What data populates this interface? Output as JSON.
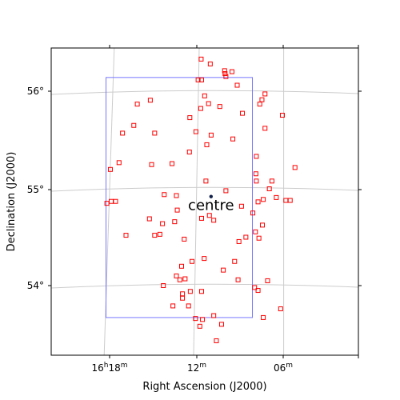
{
  "chart_data": {
    "type": "scatter",
    "title": "",
    "xlabel": "Right Ascension (J2000)",
    "ylabel": "Declination (J2000)",
    "projection": "sky (celestial coordinates, curved graticule)",
    "grid": true,
    "x_tick_labels": [
      {
        "h": "16",
        "m": "18",
        "label": "16h18m"
      },
      {
        "m": "12",
        "label": "12m"
      },
      {
        "m": "06",
        "label": "06m"
      }
    ],
    "y_tick_labels": [
      "56°",
      "55°",
      "54°"
    ],
    "annotation": {
      "text": "centre",
      "ra_h": 16.1836,
      "dec": 54.92
    },
    "field_box": {
      "ra_h_min": 16.136,
      "ra_h_max": 16.3045,
      "dec_min": 53.67,
      "dec_max": 56.15,
      "color": "#7777ff"
    },
    "point_color": "#ff0000",
    "points_ra_h_dec": [
      [
        16.195,
        56.34
      ],
      [
        16.1845,
        56.29
      ],
      [
        16.168,
        56.22
      ],
      [
        16.1595,
        56.21
      ],
      [
        16.1675,
        56.19
      ],
      [
        16.1665,
        56.16
      ],
      [
        16.1985,
        56.125
      ],
      [
        16.1945,
        56.125
      ],
      [
        16.1535,
        56.07
      ],
      [
        16.191,
        55.96
      ],
      [
        16.1215,
        55.98
      ],
      [
        16.125,
        55.92
      ],
      [
        16.1865,
        55.88
      ],
      [
        16.1275,
        55.875
      ],
      [
        16.2535,
        55.915
      ],
      [
        16.2685,
        55.875
      ],
      [
        16.1735,
        55.85
      ],
      [
        16.1955,
        55.83
      ],
      [
        16.2725,
        55.655
      ],
      [
        16.2485,
        55.575
      ],
      [
        16.201,
        55.59
      ],
      [
        16.1475,
        55.78
      ],
      [
        16.1015,
        55.76
      ],
      [
        16.208,
        55.735
      ],
      [
        16.2855,
        55.575
      ],
      [
        16.1835,
        55.555
      ],
      [
        16.1585,
        55.515
      ],
      [
        16.1885,
        55.455
      ],
      [
        16.2085,
        55.38
      ],
      [
        16.2285,
        55.26
      ],
      [
        16.2895,
        55.27
      ],
      [
        16.1315,
        55.335
      ],
      [
        16.1215,
        55.625
      ],
      [
        16.252,
        55.25
      ],
      [
        16.2995,
        55.2
      ],
      [
        16.087,
        55.22
      ],
      [
        16.132,
        55.155
      ],
      [
        16.1315,
        55.08
      ],
      [
        16.1895,
        55.08
      ],
      [
        16.2235,
        54.93
      ],
      [
        16.1855,
        54.725
      ],
      [
        16.1805,
        54.675
      ],
      [
        16.1945,
        54.695
      ],
      [
        16.1485,
        54.82
      ],
      [
        16.1665,
        54.98
      ],
      [
        16.1135,
        55.08
      ],
      [
        16.1165,
        55.0
      ],
      [
        16.1295,
        54.865
      ],
      [
        16.1355,
        54.75
      ],
      [
        16.1245,
        54.625
      ],
      [
        16.1325,
        54.555
      ],
      [
        16.1285,
        54.49
      ],
      [
        16.1515,
        54.455
      ],
      [
        16.1435,
        54.5
      ],
      [
        16.1235,
        54.89
      ],
      [
        16.1085,
        54.91
      ],
      [
        16.0975,
        54.88
      ],
      [
        16.0925,
        54.88
      ],
      [
        16.2985,
        54.87
      ],
      [
        16.3035,
        54.85
      ],
      [
        16.2935,
        54.87
      ],
      [
        16.2375,
        54.94
      ],
      [
        16.1915,
        54.28
      ],
      [
        16.2055,
        54.25
      ],
      [
        16.1565,
        54.25
      ],
      [
        16.1695,
        54.16
      ],
      [
        16.2175,
        54.2
      ],
      [
        16.2145,
        54.48
      ],
      [
        16.2225,
        54.78
      ],
      [
        16.2255,
        54.66
      ],
      [
        16.2395,
        54.64
      ],
      [
        16.2425,
        54.53
      ],
      [
        16.2815,
        54.52
      ],
      [
        16.2545,
        54.69
      ],
      [
        16.2485,
        54.52
      ],
      [
        16.2235,
        54.1
      ],
      [
        16.2195,
        54.06
      ],
      [
        16.2135,
        54.07
      ],
      [
        16.2385,
        54.0
      ],
      [
        16.2165,
        53.915
      ],
      [
        16.2165,
        53.87
      ],
      [
        16.2275,
        53.79
      ],
      [
        16.2095,
        53.79
      ],
      [
        16.2015,
        53.66
      ],
      [
        16.1935,
        53.65
      ],
      [
        16.1945,
        53.94
      ],
      [
        16.1805,
        53.69
      ],
      [
        16.1775,
        53.43
      ],
      [
        16.1715,
        53.6
      ],
      [
        16.1965,
        53.58
      ],
      [
        16.2075,
        53.94
      ],
      [
        16.1185,
        54.05
      ],
      [
        16.1525,
        54.06
      ],
      [
        16.1335,
        53.98
      ],
      [
        16.1295,
        53.95
      ],
      [
        16.1035,
        53.76
      ],
      [
        16.1235,
        53.67
      ]
    ]
  }
}
